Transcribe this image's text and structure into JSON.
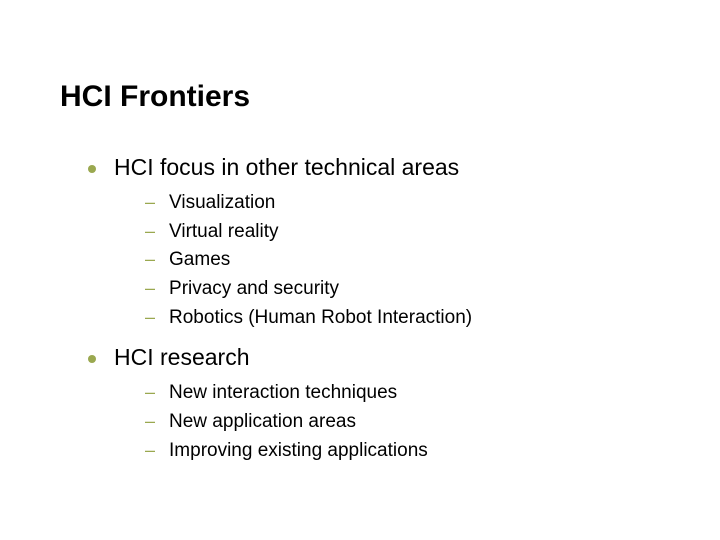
{
  "slide": {
    "title": "HCI Frontiers",
    "colors": {
      "bullet": "#9aa84f",
      "text": "#000000",
      "background": "#ffffff"
    },
    "typography": {
      "title_fontsize": 30,
      "top_fontsize": 23,
      "sub_fontsize": 19,
      "font_family": "Arial"
    },
    "sections": [
      {
        "heading": "HCI focus in other technical areas",
        "items": [
          "Visualization",
          "Virtual reality",
          "Games",
          "Privacy and security",
          "Robotics (Human Robot Interaction)"
        ]
      },
      {
        "heading": "HCI research",
        "items": [
          "New interaction techniques",
          "New application areas",
          "Improving existing applications"
        ]
      }
    ]
  }
}
